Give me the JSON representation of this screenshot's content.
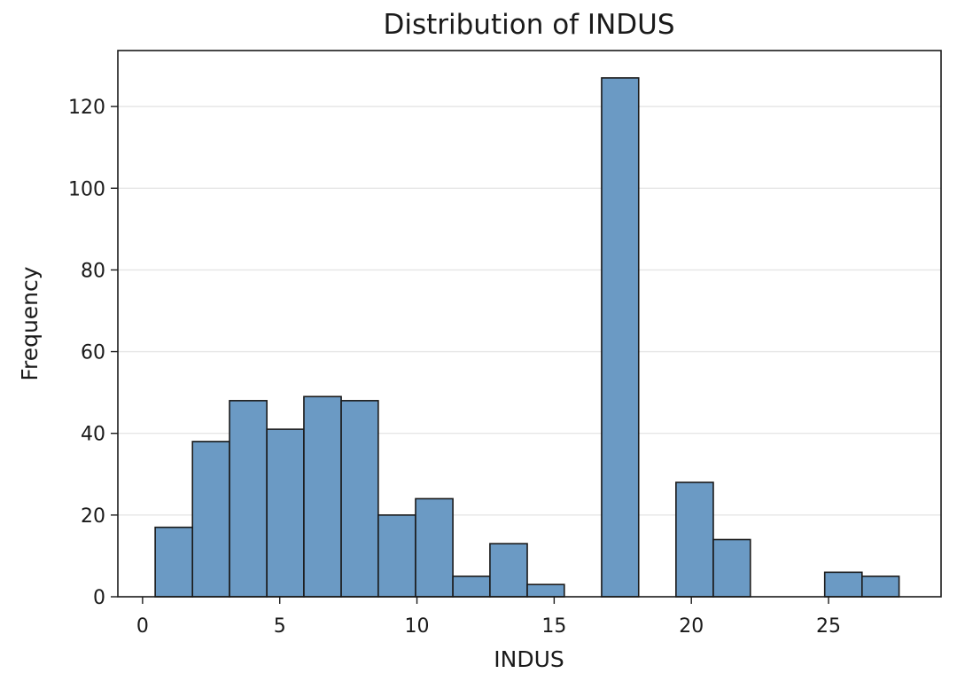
{
  "chart_data": {
    "type": "bar",
    "title": "Distribution of INDUS",
    "xlabel": "INDUS",
    "ylabel": "Frequency",
    "xlim": [
      -0.9,
      29.1
    ],
    "ylim": [
      0,
      133.7
    ],
    "x_ticks": [
      0,
      5,
      10,
      15,
      20,
      25
    ],
    "y_ticks": [
      0,
      20,
      40,
      60,
      80,
      100,
      120
    ],
    "grid": "y",
    "bar_color": "#6b9ac4",
    "edge_color": "#1a1a1a",
    "grid_color": "#e6e6e6",
    "bins": [
      {
        "x0": 0.46,
        "x1": 1.82,
        "value": 17
      },
      {
        "x0": 1.82,
        "x1": 3.17,
        "value": 38
      },
      {
        "x0": 3.17,
        "x1": 4.53,
        "value": 48
      },
      {
        "x0": 4.53,
        "x1": 5.88,
        "value": 41
      },
      {
        "x0": 5.88,
        "x1": 7.24,
        "value": 49
      },
      {
        "x0": 7.24,
        "x1": 8.59,
        "value": 48
      },
      {
        "x0": 8.59,
        "x1": 9.95,
        "value": 20
      },
      {
        "x0": 9.95,
        "x1": 11.31,
        "value": 24
      },
      {
        "x0": 11.31,
        "x1": 12.66,
        "value": 5
      },
      {
        "x0": 12.66,
        "x1": 14.02,
        "value": 13
      },
      {
        "x0": 14.02,
        "x1": 15.37,
        "value": 3
      },
      {
        "x0": 15.37,
        "x1": 16.73,
        "value": 0
      },
      {
        "x0": 16.73,
        "x1": 18.08,
        "value": 127
      },
      {
        "x0": 18.08,
        "x1": 19.44,
        "value": 0
      },
      {
        "x0": 19.44,
        "x1": 20.8,
        "value": 28
      },
      {
        "x0": 20.8,
        "x1": 22.15,
        "value": 14
      },
      {
        "x0": 22.15,
        "x1": 23.51,
        "value": 0
      },
      {
        "x0": 23.51,
        "x1": 24.86,
        "value": 0
      },
      {
        "x0": 24.86,
        "x1": 26.22,
        "value": 6
      },
      {
        "x0": 26.22,
        "x1": 27.57,
        "value": 5
      }
    ]
  }
}
